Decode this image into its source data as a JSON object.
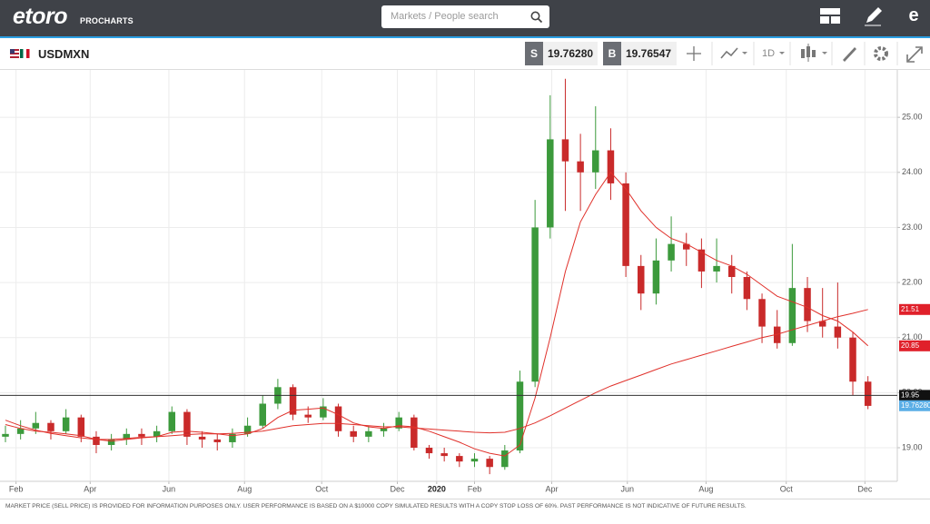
{
  "header": {
    "logo": "etoro",
    "product": "PROCHARTS",
    "search_placeholder": "Markets / People search"
  },
  "toolbar": {
    "symbol": "USDMXN",
    "sell_label": "S",
    "sell_price": "19.76280",
    "buy_label": "B",
    "buy_price": "19.76547",
    "interval": "1D"
  },
  "chart_data": {
    "type": "candlestick",
    "up_color": "#3c9a3c",
    "down_color": "#c92a2a",
    "open": [
      19.2,
      19.25,
      19.35,
      19.45,
      19.3,
      19.55,
      19.2,
      19.05,
      19.15,
      19.25,
      19.2,
      19.3,
      19.65,
      19.2,
      19.15,
      19.1,
      19.25,
      19.4,
      19.8,
      20.1,
      19.6,
      19.55,
      19.75,
      19.3,
      19.2,
      19.3,
      19.35,
      19.55,
      19.0,
      18.9,
      18.85,
      18.75,
      18.8,
      18.65,
      18.95,
      20.2,
      23.0,
      24.6,
      24.2,
      24.0,
      24.4,
      23.8,
      22.3,
      21.8,
      22.4,
      22.7,
      22.6,
      22.2,
      22.3,
      22.1,
      21.7,
      21.2,
      20.9,
      21.9,
      21.3,
      21.2,
      21.0,
      20.2
    ],
    "high": [
      19.4,
      19.5,
      19.65,
      19.5,
      19.7,
      19.6,
      19.3,
      19.25,
      19.35,
      19.35,
      19.4,
      19.75,
      19.7,
      19.3,
      19.25,
      19.35,
      19.55,
      19.95,
      20.25,
      20.15,
      19.75,
      19.9,
      19.8,
      19.4,
      19.4,
      19.45,
      19.65,
      19.6,
      19.05,
      19.0,
      18.9,
      18.9,
      18.85,
      19.05,
      20.4,
      23.5,
      25.4,
      25.7,
      24.7,
      25.2,
      24.8,
      24.0,
      22.5,
      22.8,
      23.2,
      22.9,
      22.8,
      22.8,
      22.5,
      22.2,
      21.8,
      21.5,
      22.7,
      22.1,
      21.9,
      22.0,
      21.1,
      20.3
    ],
    "low": [
      19.1,
      19.15,
      19.25,
      19.15,
      19.25,
      19.1,
      18.9,
      18.95,
      19.05,
      19.05,
      19.1,
      19.25,
      19.05,
      19.0,
      18.95,
      19.0,
      19.2,
      19.35,
      19.7,
      19.5,
      19.45,
      19.5,
      19.2,
      19.1,
      19.1,
      19.2,
      19.3,
      18.95,
      18.8,
      18.75,
      18.65,
      18.65,
      18.52,
      18.6,
      18.9,
      20.1,
      22.8,
      23.3,
      23.3,
      23.7,
      23.5,
      22.1,
      21.5,
      21.6,
      22.2,
      22.3,
      21.9,
      22.0,
      21.8,
      21.5,
      20.9,
      20.8,
      20.85,
      21.1,
      21.0,
      20.8,
      19.95,
      19.7
    ],
    "close": [
      19.25,
      19.35,
      19.45,
      19.3,
      19.55,
      19.2,
      19.05,
      19.15,
      19.25,
      19.2,
      19.3,
      19.65,
      19.2,
      19.15,
      19.1,
      19.25,
      19.4,
      19.8,
      20.1,
      19.6,
      19.55,
      19.75,
      19.3,
      19.2,
      19.3,
      19.35,
      19.55,
      19.0,
      18.9,
      18.85,
      18.75,
      18.8,
      18.65,
      18.95,
      20.2,
      23.0,
      24.6,
      24.2,
      24.0,
      24.4,
      23.8,
      22.3,
      21.8,
      22.4,
      22.7,
      22.6,
      22.2,
      22.3,
      22.1,
      21.7,
      21.2,
      20.9,
      21.9,
      21.3,
      21.2,
      21.0,
      20.2,
      19.76
    ],
    "lines": [
      {
        "color": "#e0302a",
        "values": [
          19.42,
          19.35,
          19.3,
          19.28,
          19.25,
          19.22,
          19.15,
          19.12,
          19.15,
          19.18,
          19.2,
          19.28,
          19.3,
          19.28,
          19.25,
          19.22,
          19.25,
          19.35,
          19.55,
          19.68,
          19.7,
          19.72,
          19.6,
          19.45,
          19.38,
          19.35,
          19.4,
          19.38,
          19.3,
          19.2,
          19.1,
          18.98,
          18.9,
          18.85,
          19.05,
          19.9,
          21.0,
          22.2,
          23.1,
          23.6,
          24.0,
          23.7,
          23.3,
          23.0,
          22.8,
          22.7,
          22.55,
          22.4,
          22.3,
          22.15,
          21.95,
          21.75,
          21.65,
          21.55,
          21.4,
          21.3,
          21.1,
          20.85
        ]
      },
      {
        "color": "#e0302a",
        "values": [
          19.5,
          19.4,
          19.32,
          19.26,
          19.22,
          19.18,
          19.15,
          19.15,
          19.17,
          19.19,
          19.2,
          19.22,
          19.24,
          19.25,
          19.25,
          19.26,
          19.28,
          19.3,
          19.35,
          19.4,
          19.42,
          19.44,
          19.44,
          19.42,
          19.4,
          19.38,
          19.38,
          19.36,
          19.34,
          19.32,
          19.3,
          19.28,
          19.27,
          19.28,
          19.35,
          19.45,
          19.58,
          19.72,
          19.86,
          20.0,
          20.12,
          20.22,
          20.32,
          20.42,
          20.52,
          20.6,
          20.68,
          20.76,
          20.84,
          20.92,
          21.0,
          21.06,
          21.14,
          21.22,
          21.3,
          21.38,
          21.44,
          21.51
        ]
      }
    ],
    "price_tags": [
      {
        "value": 21.51,
        "label": "21.51",
        "color": "#e0202a"
      },
      {
        "value": 20.85,
        "label": "20.85",
        "color": "#e0202a"
      },
      {
        "value": 19.95,
        "label": "19.95",
        "color": "#111111"
      },
      {
        "value": 19.7628,
        "label": "19.76280",
        "color": "#5aaee6"
      }
    ],
    "crosshair": 19.95,
    "xlim": [
      -0.36,
      58.94
    ],
    "xticks": [
      {
        "value": 0.7,
        "label": "Feb"
      },
      {
        "value": 5.6,
        "label": "Apr"
      },
      {
        "value": 10.8,
        "label": "Jun"
      },
      {
        "value": 15.8,
        "label": "Aug"
      },
      {
        "value": 20.9,
        "label": "Oct"
      },
      {
        "value": 25.9,
        "label": "Dec"
      },
      {
        "value": 28.5,
        "label": "2020",
        "bold": true
      },
      {
        "value": 31.0,
        "label": "Feb"
      },
      {
        "value": 36.1,
        "label": "Apr"
      },
      {
        "value": 41.1,
        "label": "Jun"
      },
      {
        "value": 46.3,
        "label": "Aug"
      },
      {
        "value": 51.6,
        "label": "Oct"
      },
      {
        "value": 56.8,
        "label": "Dec"
      }
    ],
    "ylim": [
      18.39,
      25.86
    ],
    "yticks": [
      {
        "value": 19,
        "label": "19.00"
      },
      {
        "value": 20,
        "label": "20.00"
      },
      {
        "value": 21,
        "label": "21.00"
      },
      {
        "value": 22,
        "label": "22.00"
      },
      {
        "value": 23,
        "label": "23.00"
      },
      {
        "value": 24,
        "label": "24.00"
      },
      {
        "value": 25,
        "label": "25.00"
      }
    ],
    "grid": true
  },
  "footer": {
    "disclaimer": "MARKET PRICE (SELL PRICE) IS PROVIDED FOR INFORMATION PURPOSES ONLY. USER PERFORMANCE IS BASED ON A $10000 COPY SIMULATED RESULTS WITH A COPY STOP LOSS OF 60%. PAST PERFORMANCE IS NOT INDICATIVE OF FUTURE RESULTS."
  }
}
